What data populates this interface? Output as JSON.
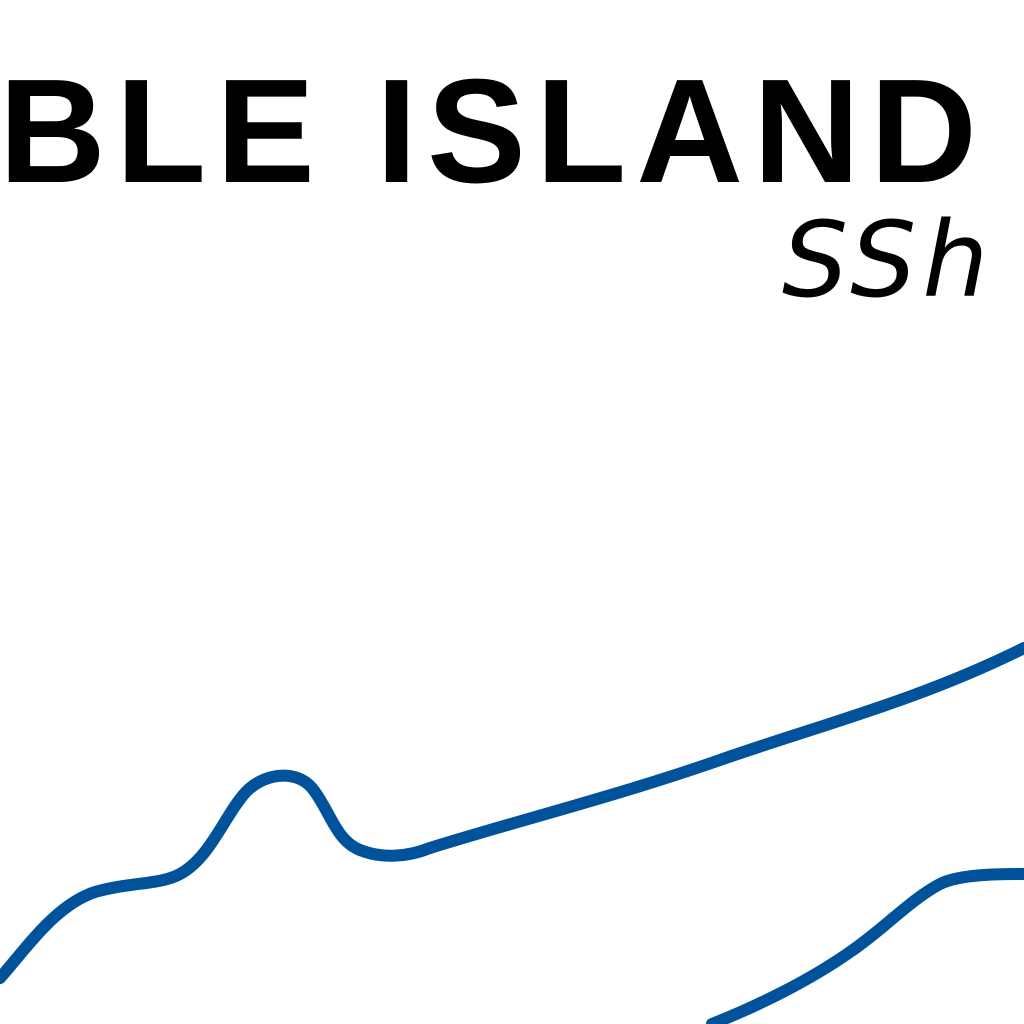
{
  "map": {
    "title": "ABLE ISLAND",
    "subtitle": "SSh",
    "colors": {
      "background": "#ffffff",
      "text": "#000000",
      "coastline": "#00539b"
    }
  }
}
